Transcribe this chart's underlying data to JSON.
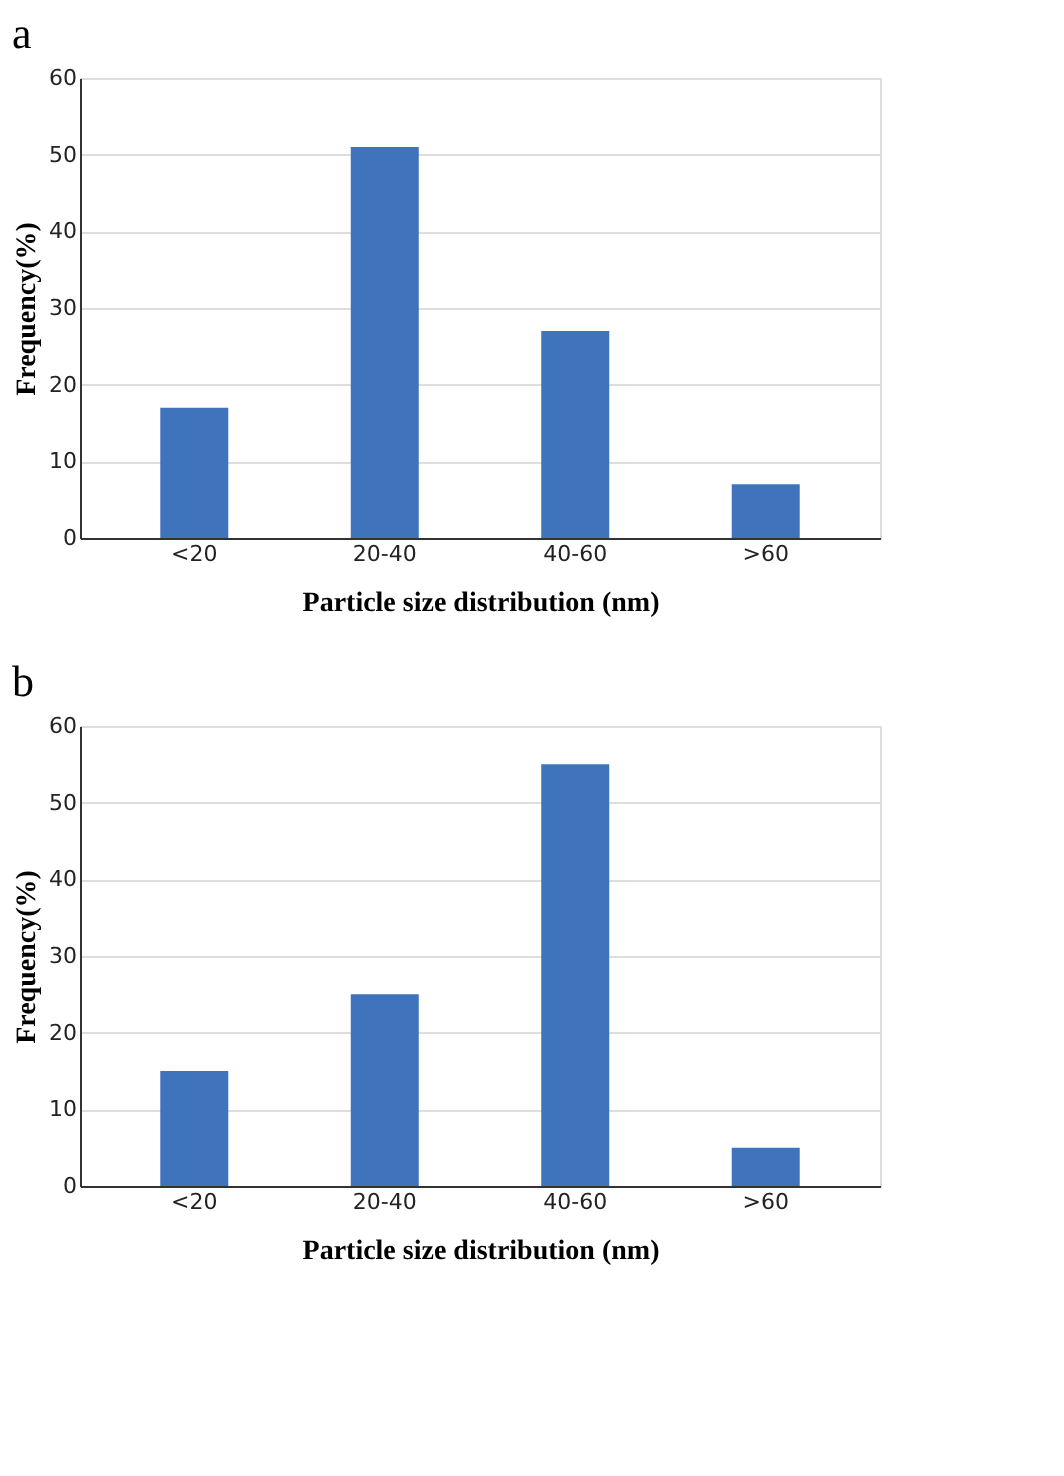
{
  "chart_data": [
    {
      "type": "bar",
      "title": "a",
      "categories": [
        "<20",
        "20-40",
        "40-60",
        ">60"
      ],
      "values": [
        17,
        51,
        27,
        7
      ],
      "color": "#3f74bd",
      "xlabel": "Particle size distribution (nm)",
      "ylabel": "Frequency(%)",
      "ylim": [
        0,
        60
      ],
      "yticks": [
        0,
        10,
        20,
        30,
        40,
        50,
        60
      ],
      "grid": "y"
    },
    {
      "type": "bar",
      "title": "b",
      "categories": [
        "<20",
        "20-40",
        "40-60",
        ">60"
      ],
      "values": [
        15,
        25,
        55,
        5
      ],
      "color": "#3f74bd",
      "xlabel": "Particle size distribution (nm)",
      "ylabel": "Frequency(%)",
      "ylim": [
        0,
        60
      ],
      "yticks": [
        0,
        10,
        20,
        30,
        40,
        50,
        60
      ],
      "grid": "y"
    }
  ]
}
